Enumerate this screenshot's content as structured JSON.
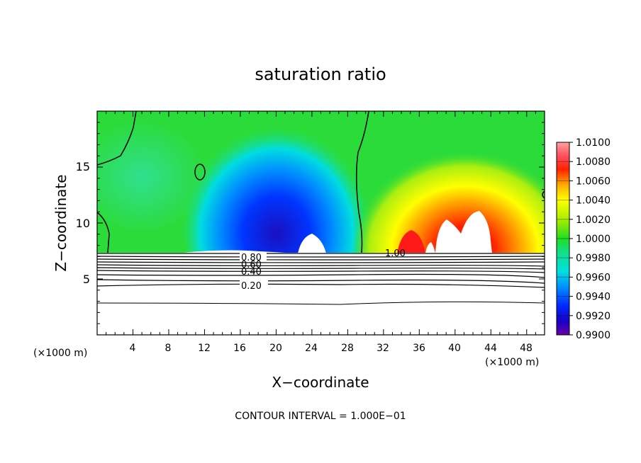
{
  "chart_data": {
    "type": "heatmap",
    "title": "saturation ratio",
    "xlabel": "X−coordinate",
    "ylabel": "Z−coordinate",
    "x_unit_left": "(×1000 m)",
    "x_unit_right": "(×1000 m)",
    "footer": "CONTOUR INTERVAL = 1.000E−01",
    "xlim": [
      0,
      50
    ],
    "ylim": [
      0,
      20
    ],
    "x_ticks": [
      "4",
      "8",
      "12",
      "16",
      "20",
      "24",
      "28",
      "32",
      "36",
      "40",
      "44",
      "48"
    ],
    "y_ticks": [
      "5",
      "10",
      "15"
    ],
    "colorbar": {
      "range": [
        0.99,
        1.01
      ],
      "labels": [
        "1.0100",
        "1.0080",
        "1.0060",
        "1.0040",
        "1.0020",
        "1.0000",
        "0.9980",
        "0.9960",
        "0.9940",
        "0.9920",
        "0.9900"
      ]
    },
    "contour_labels": [
      "0.80",
      "0.60",
      "0.40",
      "0.20",
      "1.00"
    ]
  }
}
